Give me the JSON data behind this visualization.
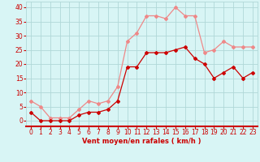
{
  "hours": [
    0,
    1,
    2,
    3,
    4,
    5,
    6,
    7,
    8,
    9,
    10,
    11,
    12,
    13,
    14,
    15,
    16,
    17,
    18,
    19,
    20,
    21,
    22,
    23
  ],
  "wind_mean": [
    3,
    0,
    0,
    0,
    0,
    2,
    3,
    3,
    4,
    7,
    19,
    19,
    24,
    24,
    24,
    25,
    26,
    22,
    20,
    15,
    17,
    19,
    15,
    17
  ],
  "wind_gust": [
    7,
    5,
    1,
    1,
    1,
    4,
    7,
    6,
    7,
    12,
    28,
    31,
    37,
    37,
    36,
    40,
    37,
    37,
    24,
    25,
    28,
    26,
    26,
    26
  ],
  "bg_color": "#d8f5f5",
  "grid_color": "#b0d8d8",
  "mean_color": "#cc0000",
  "gust_color": "#ee8888",
  "axis_label_color": "#cc0000",
  "tick_color": "#cc0000",
  "xlabel": "Vent moyen/en rafales ( km/h )",
  "ylim": [
    -2,
    42
  ],
  "yticks": [
    0,
    5,
    10,
    15,
    20,
    25,
    30,
    35,
    40
  ],
  "axis_fontsize": 6.0,
  "tick_fontsize": 5.5
}
